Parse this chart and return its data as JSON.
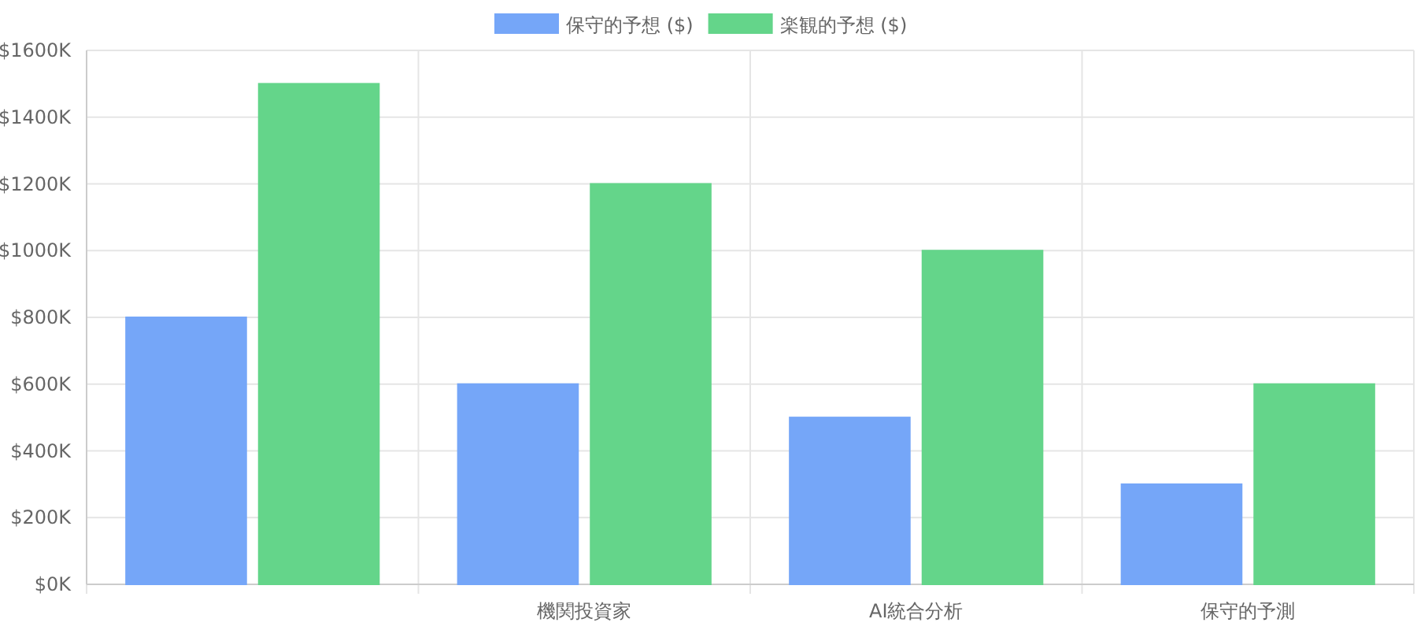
{
  "chart_data": {
    "type": "bar",
    "categories": [
      null,
      "機関投資家",
      "AI統合分析",
      "保守的予測"
    ],
    "series": [
      {
        "name": "保守的予想 ($)",
        "color": "#75a6f8",
        "values": [
          800,
          600,
          500,
          300
        ]
      },
      {
        "name": "楽観的予想 ($)",
        "color": "#64d58a",
        "values": [
          1500,
          1200,
          1000,
          600
        ]
      }
    ],
    "ylim": [
      0,
      1600
    ],
    "yticks": [
      {
        "value": 0,
        "label": "$0K"
      },
      {
        "value": 200,
        "label": "$200K"
      },
      {
        "value": 400,
        "label": "$400K"
      },
      {
        "value": 600,
        "label": "$600K"
      },
      {
        "value": 800,
        "label": "$800K"
      },
      {
        "value": 1000,
        "label": "$1000K"
      },
      {
        "value": 1200,
        "label": "$1200K"
      },
      {
        "value": 1400,
        "label": "$1400K"
      },
      {
        "value": 1600,
        "label": "$1600K"
      }
    ],
    "grid": true,
    "legend": "top"
  }
}
